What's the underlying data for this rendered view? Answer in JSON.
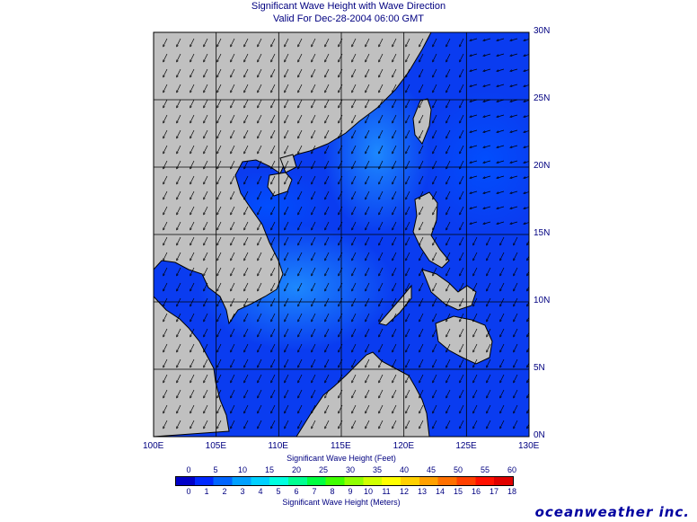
{
  "header": {
    "title": "Significant Wave Height with Wave Direction",
    "subtitle": "Valid For Dec-28-2004 06:00 GMT"
  },
  "map": {
    "lon_range": [
      100,
      130
    ],
    "lat_range": [
      0,
      30
    ],
    "lon_labels": [
      "100E",
      "105E",
      "110E",
      "115E",
      "120E",
      "125E",
      "130E"
    ],
    "lat_labels": [
      "30N",
      "25N",
      "20N",
      "15N",
      "10N",
      "5N",
      "0N"
    ],
    "land_color": "#c0c0c0",
    "coast_color": "#000000",
    "sea_color": "#0a3cf0",
    "grid_step_deg": 5
  },
  "colorbar": {
    "feet_title": "Significant Wave Height (Feet)",
    "feet_ticks": [
      "0",
      "5",
      "10",
      "15",
      "20",
      "25",
      "30",
      "35",
      "40",
      "45",
      "50",
      "55",
      "60"
    ],
    "meters_title": "Significant Wave Height (Meters)",
    "meters_ticks": [
      "0",
      "1",
      "2",
      "3",
      "4",
      "5",
      "6",
      "7",
      "8",
      "9",
      "10",
      "11",
      "12",
      "13",
      "14",
      "15",
      "16",
      "17",
      "18"
    ],
    "colors": [
      "#0000c8",
      "#0028ff",
      "#0064ff",
      "#00a0ff",
      "#00d0ff",
      "#00ffe0",
      "#00ff90",
      "#00ff40",
      "#40ff00",
      "#90ff00",
      "#d0ff00",
      "#ffff00",
      "#ffd000",
      "#ffa000",
      "#ff7000",
      "#ff4000",
      "#ff1000",
      "#e00000"
    ]
  },
  "logo": "oceanweather inc."
}
